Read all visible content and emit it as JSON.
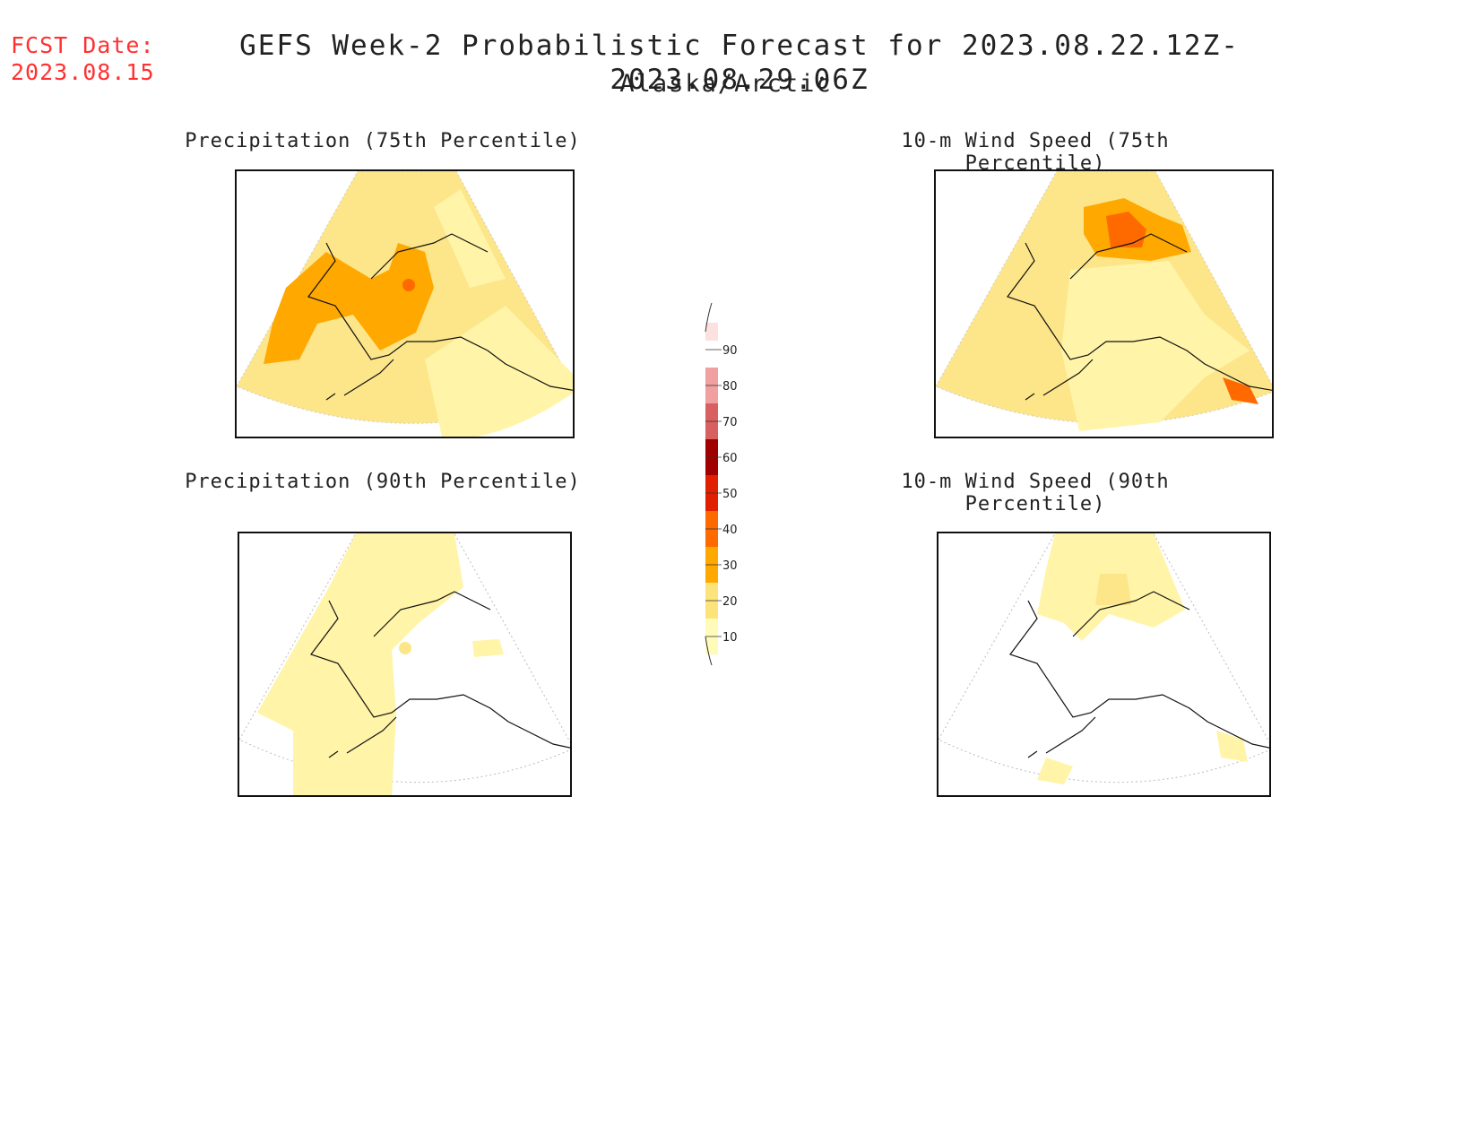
{
  "header": {
    "fcst_line1": "FCST Date:",
    "fcst_line2": "2023.08.15",
    "title": "GEFS Week-2 Probabilistic Forecast for 2023.08.22.12Z-2023.08.29.06Z",
    "subtitle": "Alaska/Arctic"
  },
  "panels": [
    {
      "title": "Precipitation (75th Percentile)",
      "fill": "#fde58a"
    },
    {
      "title": "10-m Wind Speed (75th Percentile)",
      "fill": "#fde58a"
    },
    {
      "title": "Precipitation (90th Percentile)",
      "fill": "#fff4a8"
    },
    {
      "title": "10-m Wind Speed (90th Percentile)",
      "fill": "#fff4a8"
    }
  ],
  "colorbar": {
    "levels": [
      "10",
      "20",
      "30",
      "40",
      "50",
      "60",
      "70",
      "80",
      "90"
    ],
    "colors": [
      "#fffbb8",
      "#fde47a",
      "#ffa800",
      "#ff6a00",
      "#e02000",
      "#a00000",
      "#d86060",
      "#f0a0a0",
      "#fde0e0"
    ]
  }
}
